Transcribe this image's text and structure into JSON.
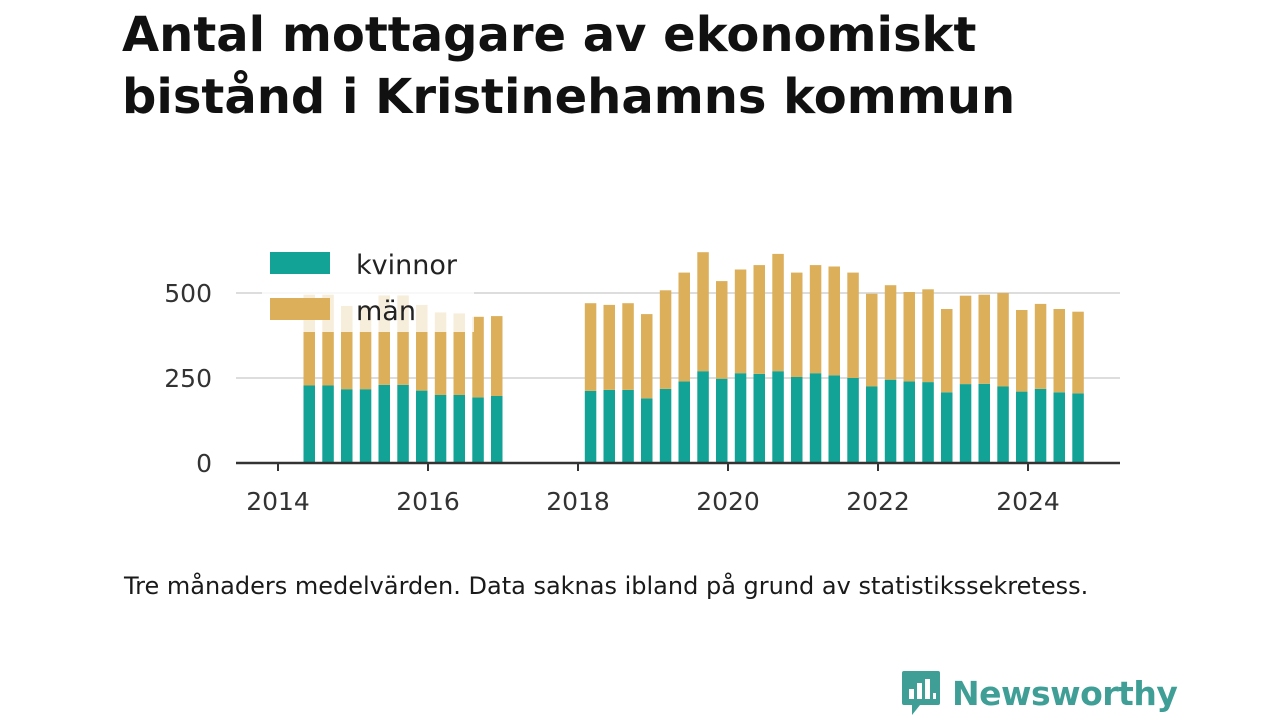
{
  "title": "Antal mottagare av ekonomiskt bistånd i Kristinehamns kommun",
  "note": "Tre månaders medelvärden. Data saknas ibland på grund av statistikssekretess.",
  "brand": {
    "name": "Newsworthy",
    "icon": "newsworthy-chart-bubble-icon",
    "color": "#3f9f97"
  },
  "chart_data": {
    "type": "bar",
    "stacked": true,
    "x_type": "date",
    "ylim": [
      0,
      650
    ],
    "yticks": [
      "0",
      "250",
      "500"
    ],
    "xticks": [
      "2014",
      "2016",
      "2018",
      "2020",
      "2022",
      "2024"
    ],
    "grid": "horizontal",
    "legend_position": "top-left",
    "colors": {
      "kvinnor": "#12a296",
      "män": "#dcaf5b"
    },
    "x": [
      "2014-06",
      "2014-09",
      "2014-12",
      "2015-03",
      "2015-06",
      "2015-09",
      "2015-12",
      "2016-03",
      "2016-06",
      "2016-09",
      "2016-12",
      "2018-03",
      "2018-06",
      "2018-09",
      "2018-12",
      "2019-03",
      "2019-06",
      "2019-09",
      "2019-12",
      "2020-03",
      "2020-06",
      "2020-09",
      "2020-12",
      "2021-03",
      "2021-06",
      "2021-09",
      "2021-12",
      "2022-03",
      "2022-06",
      "2022-09",
      "2022-12",
      "2023-03",
      "2023-06",
      "2023-09",
      "2023-12",
      "2024-03",
      "2024-06",
      "2024-09"
    ],
    "series": [
      {
        "name": "kvinnor",
        "values": [
          228,
          228,
          217,
          217,
          230,
          230,
          213,
          200,
          200,
          193,
          197,
          212,
          215,
          215,
          190,
          218,
          240,
          270,
          248,
          264,
          262,
          270,
          253,
          264,
          258,
          250,
          225,
          245,
          240,
          238,
          208,
          232,
          233,
          225,
          210,
          218,
          208,
          205
        ]
      },
      {
        "name": "män",
        "values": [
          267,
          267,
          245,
          245,
          263,
          263,
          252,
          243,
          240,
          237,
          235,
          258,
          250,
          255,
          248,
          290,
          320,
          350,
          287,
          305,
          320,
          345,
          307,
          318,
          320,
          310,
          273,
          278,
          263,
          273,
          245,
          260,
          262,
          275,
          240,
          250,
          245,
          240
        ]
      }
    ]
  }
}
